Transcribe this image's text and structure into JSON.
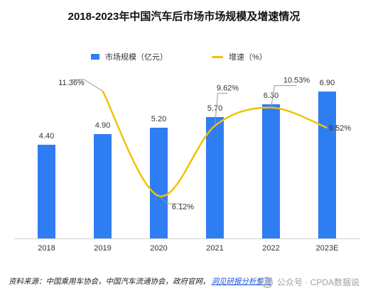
{
  "title": "2018-2023年中国汽车后市场市场规模及增速情况",
  "legend": {
    "bar_label": "市场规模（亿元）",
    "line_label": "增速（%）"
  },
  "colors": {
    "bar": "#2F7DF2",
    "line": "#F2C200",
    "callout": "#9a9a9a"
  },
  "chart_data": {
    "type": "bar",
    "categories": [
      "2018",
      "2019",
      "2020",
      "2021",
      "2022",
      "2023E"
    ],
    "series": [
      {
        "name": "市场规模（亿元）",
        "type": "bar",
        "values": [
          4.4,
          4.9,
          5.2,
          5.7,
          6.3,
          6.9
        ],
        "labels": [
          "4.40",
          "4.90",
          "5.20",
          "5.70",
          "6.30",
          "6.90"
        ]
      },
      {
        "name": "增速（%）",
        "type": "line",
        "values": [
          null,
          11.36,
          6.12,
          9.62,
          10.53,
          9.52
        ],
        "labels": [
          "",
          "11.36%",
          "6.12%",
          "9.62%",
          "10.53%",
          "9.52%"
        ]
      }
    ],
    "ylim_bar": [
      0,
      8
    ],
    "ylim_line": [
      4,
      12.5
    ],
    "grid": false,
    "legend_position": "top-center"
  },
  "footer": {
    "source_text": "资料来源：中国乘用车协会，中国汽车流通协会，政府官网，",
    "source_link": "洞见研报分析整理",
    "watermark": "公众号 · CPDA数据说"
  }
}
